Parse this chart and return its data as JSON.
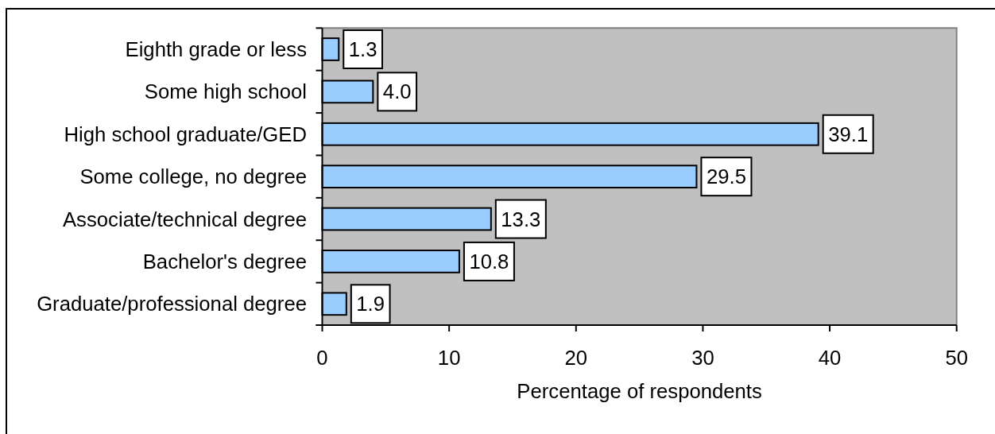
{
  "chart_data": {
    "type": "bar",
    "orientation": "horizontal",
    "categories": [
      "Eighth grade or less",
      "Some high school",
      "High school graduate/GED",
      "Some college, no degree",
      "Associate/technical degree",
      "Bachelor's degree",
      "Graduate/professional degree"
    ],
    "values": [
      1.3,
      4.0,
      39.1,
      29.5,
      13.3,
      10.8,
      1.9
    ],
    "value_labels": [
      "1.3",
      "4.0",
      "39.1",
      "29.5",
      "13.3",
      "10.8",
      "1.9"
    ],
    "color": "#99ccff",
    "xlim": [
      0,
      50
    ],
    "xticks": [
      0,
      10,
      20,
      30,
      40,
      50
    ],
    "xlabel": "Percentage of respondents"
  }
}
